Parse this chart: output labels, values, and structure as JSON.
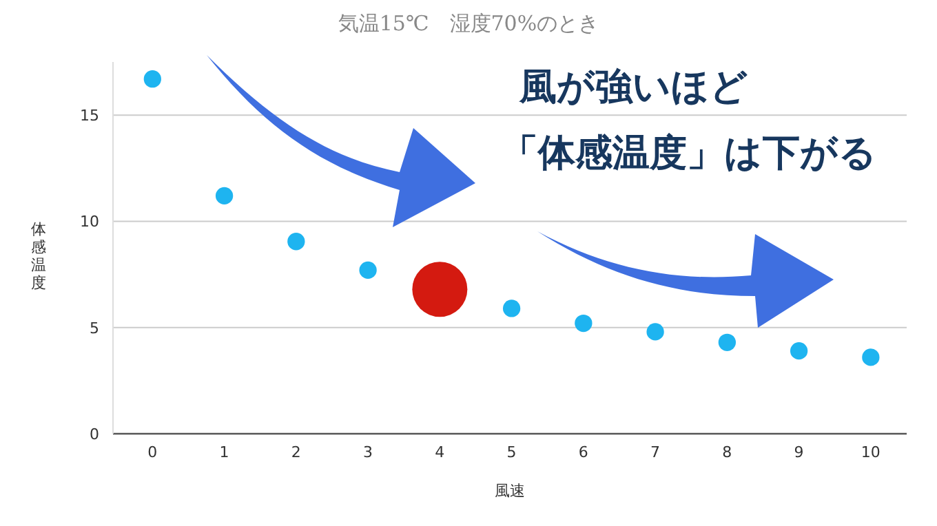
{
  "chart_data": {
    "type": "bubble",
    "title": "気温15℃　湿度70%のとき",
    "xlabel": "風速",
    "ylabel": "体感温度",
    "annotations": [
      "風が強いほど",
      "「体感温度」は下がる"
    ],
    "x": [
      0,
      1,
      2,
      3,
      4,
      5,
      6,
      7,
      8,
      9,
      10
    ],
    "values": [
      16.7,
      11.2,
      9.05,
      7.7,
      6.8,
      5.9,
      5.2,
      4.8,
      4.3,
      3.9,
      3.6
    ],
    "sizes": [
      0.1,
      0.1,
      0.1,
      0.1,
      1,
      0.1,
      0.1,
      0.1,
      0.1,
      0.1,
      0.1
    ],
    "colors": [
      "#1eb4f0",
      "#1eb4f0",
      "#1eb4f0",
      "#1eb4f0",
      "#d41a10",
      "#1eb4f0",
      "#1eb4f0",
      "#1eb4f0",
      "#1eb4f0",
      "#1eb4f0",
      "#1eb4f0"
    ],
    "xlim": [
      -0.55,
      10.5
    ],
    "ylim": [
      0,
      17.5
    ],
    "xticks": [
      0,
      1,
      2,
      3,
      4,
      5,
      6,
      7,
      8,
      9,
      10
    ],
    "yticks": [
      0,
      5,
      10,
      15
    ],
    "grid": "y"
  }
}
